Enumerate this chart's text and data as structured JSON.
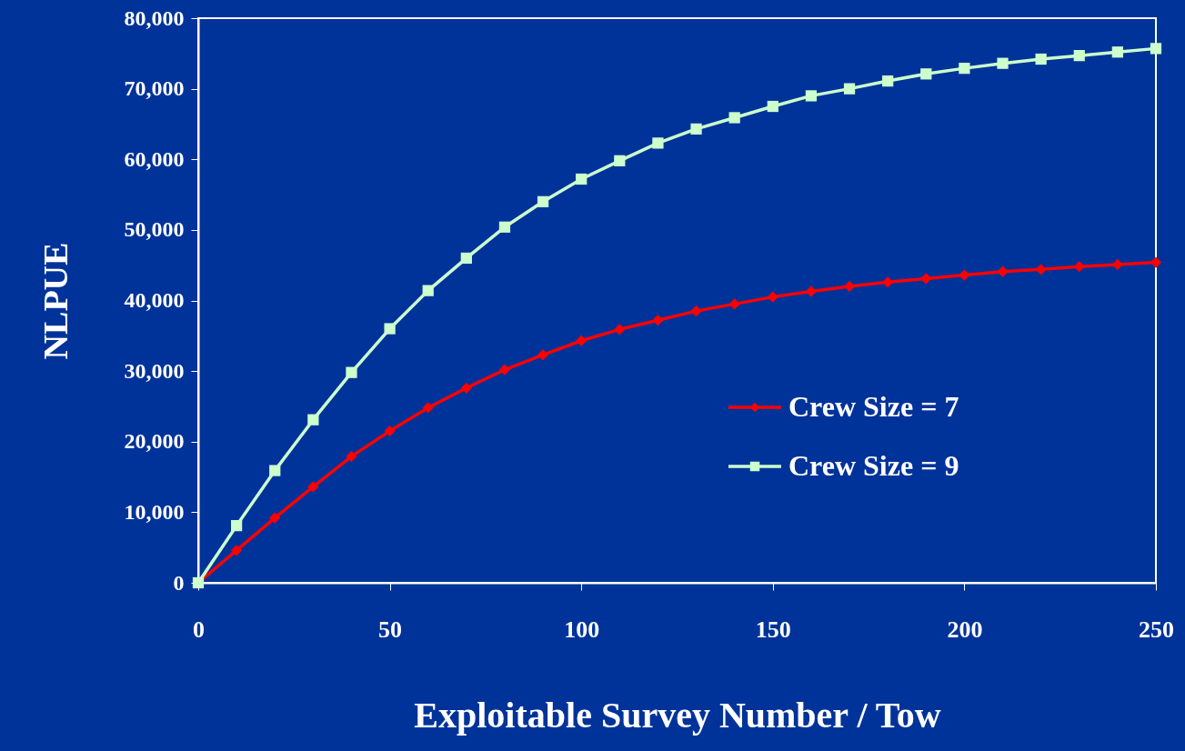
{
  "chart_data": {
    "type": "line",
    "xlabel": "Exploitable Survey Number / Tow",
    "ylabel": "NLPUE",
    "x": [
      0,
      10,
      20,
      30,
      40,
      50,
      60,
      70,
      80,
      90,
      100,
      110,
      120,
      130,
      140,
      150,
      160,
      170,
      180,
      190,
      200,
      210,
      220,
      230,
      240,
      250
    ],
    "xlim": [
      0,
      250
    ],
    "xticks": [
      0,
      50,
      100,
      150,
      200,
      250
    ],
    "ylim": [
      0,
      80000
    ],
    "yticks": [
      0,
      {
        "value": 10000,
        "label": "10,000"
      },
      {
        "value": 20000,
        "label": "20,000"
      },
      {
        "value": 30000,
        "label": "30,000"
      },
      {
        "value": 40000,
        "label": "40,000"
      },
      {
        "value": 50000,
        "label": "50,000"
      },
      {
        "value": 60000,
        "label": "60,000"
      },
      {
        "value": 70000,
        "label": "70,000"
      },
      {
        "value": 80000,
        "label": "80,000"
      }
    ],
    "grid": false,
    "legend": "bottom right",
    "line_style": "solid",
    "series": [
      {
        "name": "Crew Size = 7",
        "color": "#ff0000",
        "marker": "diamond",
        "values": [
          0,
          4600,
          9200,
          13600,
          17900,
          21500,
          24800,
          27600,
          30200,
          32300,
          34300,
          35900,
          37200,
          38500,
          39500,
          40500,
          41300,
          42000,
          42600,
          43100,
          43600,
          44100,
          44400,
          44800,
          45100,
          45400
        ]
      },
      {
        "name": "Crew Size = 9",
        "color": "#ccffcc",
        "marker": "square",
        "values": [
          0,
          8100,
          15900,
          23100,
          29800,
          36000,
          41400,
          46000,
          50400,
          54000,
          57200,
          59800,
          62300,
          64300,
          65900,
          67500,
          69000,
          70000,
          71100,
          72100,
          72900,
          73600,
          74200,
          74700,
          75200,
          75700
        ]
      }
    ]
  }
}
